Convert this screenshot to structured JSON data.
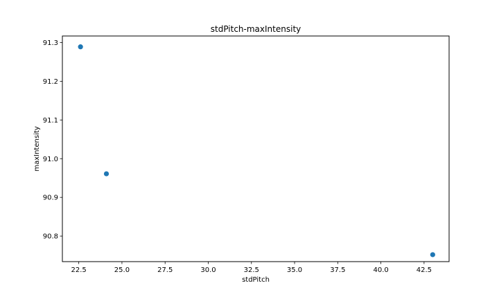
{
  "chart_data": {
    "type": "scatter",
    "title": "stdPitch-maxIntensity",
    "xlabel": "stdPitch",
    "ylabel": "maxIntensity",
    "x_ticks": [
      "22.5",
      "25.0",
      "27.5",
      "30.0",
      "32.5",
      "35.0",
      "37.5",
      "40.0",
      "42.5"
    ],
    "y_ticks": [
      "90.8",
      "90.9",
      "91.0",
      "91.1",
      "91.2",
      "91.3"
    ],
    "xlim": [
      21.55,
      43.95
    ],
    "ylim": [
      90.734,
      91.317
    ],
    "grid": false,
    "legend": false,
    "color": "#1f77b4",
    "points": [
      {
        "x": 22.6,
        "y": 91.289
      },
      {
        "x": 24.1,
        "y": 90.961
      },
      {
        "x": 43.0,
        "y": 90.752
      }
    ]
  }
}
